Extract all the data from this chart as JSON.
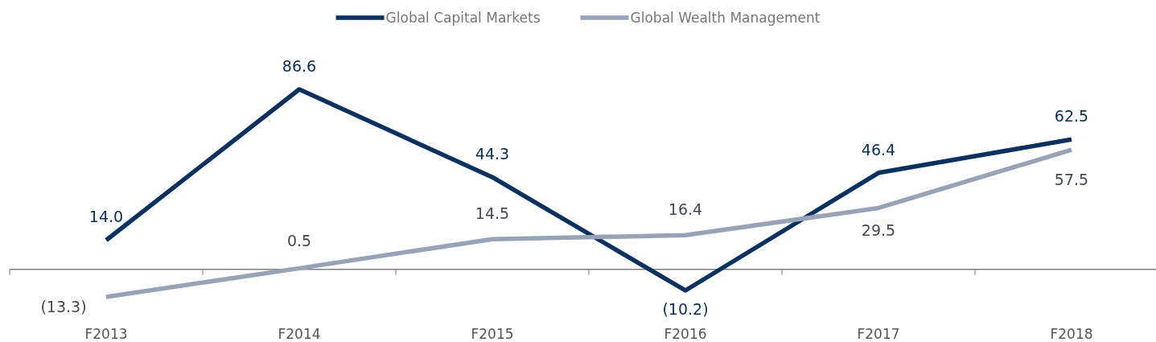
{
  "chart_data": {
    "type": "line",
    "categories": [
      "F2013",
      "F2014",
      "F2015",
      "F2016",
      "F2017",
      "F2018"
    ],
    "series": [
      {
        "name": "Global Capital Markets",
        "color": "#0b3160",
        "values": [
          14.0,
          86.6,
          44.3,
          -10.2,
          46.4,
          62.5
        ],
        "value_labels": [
          "14.0",
          "86.6",
          "44.3",
          "(10.2)",
          "46.4",
          "62.5"
        ]
      },
      {
        "name": "Global Wealth Management",
        "color": "#97a3b7",
        "values": [
          -13.3,
          0.5,
          14.5,
          16.4,
          29.5,
          57.5
        ],
        "value_labels": [
          "(13.3)",
          "0.5",
          "14.5",
          "16.4",
          "29.5",
          "57.5"
        ]
      }
    ],
    "legend": "top",
    "marker": "none",
    "line_style": "solid"
  }
}
